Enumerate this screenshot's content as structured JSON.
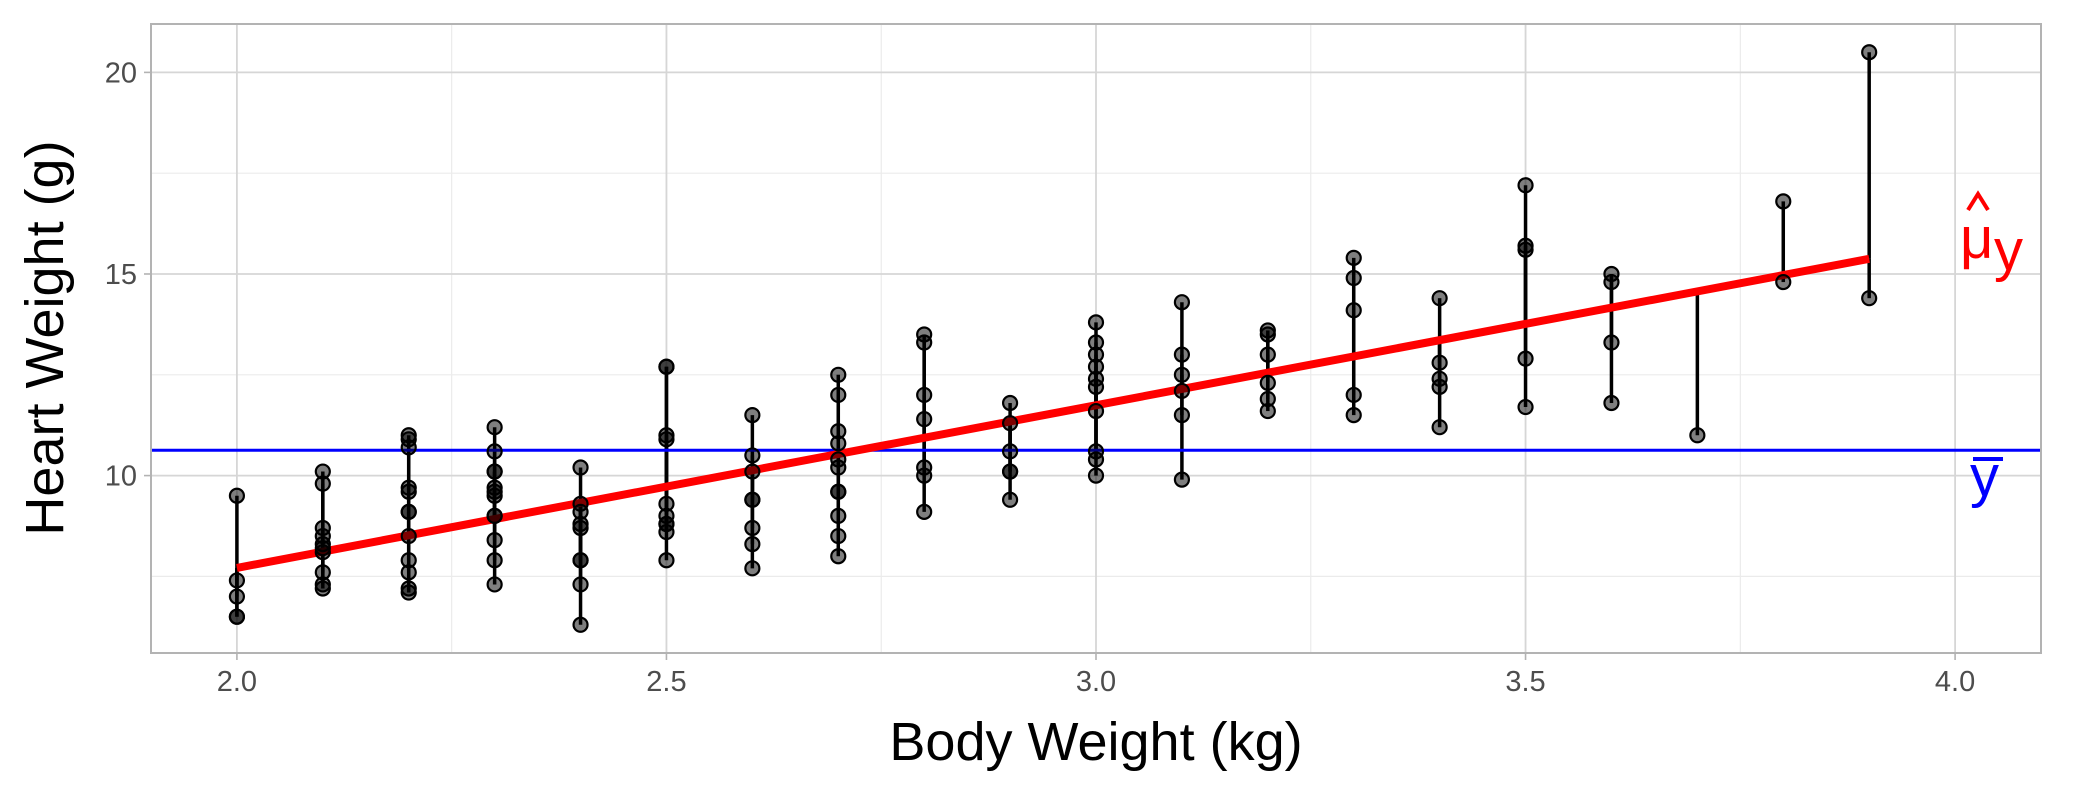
{
  "chart_data": {
    "type": "scatter",
    "title": "",
    "xlabel": "Body Weight (kg)",
    "ylabel": "Heart Weight (g)",
    "xlim": [
      1.9,
      4.1
    ],
    "ylim": [
      5.6,
      21.2
    ],
    "x_ticks": [
      2.0,
      2.5,
      3.0,
      3.5,
      4.0
    ],
    "x_tick_labels": [
      "2.0",
      "2.5",
      "3.0",
      "3.5",
      "4.0"
    ],
    "y_ticks": [
      10,
      15,
      20
    ],
    "y_tick_labels": [
      "10",
      "15",
      "20"
    ],
    "grid": true,
    "mean_line": {
      "y": 10.63,
      "label": "y",
      "label_mark": "bar",
      "color": "#0000ff"
    },
    "fit_line": {
      "intercept": -0.357,
      "slope": 4.034,
      "x_range": [
        2.0,
        3.9
      ],
      "label": "μ",
      "label_mark": "hat",
      "label_subscript": "y",
      "color": "#ff0000"
    },
    "point_color": "#000000",
    "segment_color": "#000000",
    "points": [
      {
        "x": 2.0,
        "y": 7.0
      },
      {
        "x": 2.0,
        "y": 7.4
      },
      {
        "x": 2.0,
        "y": 9.5
      },
      {
        "x": 2.0,
        "y": 6.5
      },
      {
        "x": 2.0,
        "y": 6.5
      },
      {
        "x": 2.1,
        "y": 7.2
      },
      {
        "x": 2.1,
        "y": 7.3
      },
      {
        "x": 2.1,
        "y": 7.6
      },
      {
        "x": 2.1,
        "y": 8.1
      },
      {
        "x": 2.1,
        "y": 8.2
      },
      {
        "x": 2.1,
        "y": 8.3
      },
      {
        "x": 2.1,
        "y": 8.5
      },
      {
        "x": 2.1,
        "y": 8.7
      },
      {
        "x": 2.1,
        "y": 9.8
      },
      {
        "x": 2.1,
        "y": 10.1
      },
      {
        "x": 2.2,
        "y": 7.1
      },
      {
        "x": 2.2,
        "y": 7.2
      },
      {
        "x": 2.2,
        "y": 7.6
      },
      {
        "x": 2.2,
        "y": 7.9
      },
      {
        "x": 2.2,
        "y": 8.5
      },
      {
        "x": 2.2,
        "y": 9.1
      },
      {
        "x": 2.2,
        "y": 9.1
      },
      {
        "x": 2.2,
        "y": 9.6
      },
      {
        "x": 2.2,
        "y": 9.7
      },
      {
        "x": 2.2,
        "y": 10.7
      },
      {
        "x": 2.2,
        "y": 10.9
      },
      {
        "x": 2.2,
        "y": 11.0
      },
      {
        "x": 2.3,
        "y": 7.3
      },
      {
        "x": 2.3,
        "y": 7.9
      },
      {
        "x": 2.3,
        "y": 8.4
      },
      {
        "x": 2.3,
        "y": 9.0
      },
      {
        "x": 2.3,
        "y": 9.0
      },
      {
        "x": 2.3,
        "y": 9.5
      },
      {
        "x": 2.3,
        "y": 9.6
      },
      {
        "x": 2.3,
        "y": 9.7
      },
      {
        "x": 2.3,
        "y": 10.1
      },
      {
        "x": 2.3,
        "y": 10.1
      },
      {
        "x": 2.3,
        "y": 10.6
      },
      {
        "x": 2.3,
        "y": 11.2
      },
      {
        "x": 2.4,
        "y": 6.3
      },
      {
        "x": 2.4,
        "y": 7.3
      },
      {
        "x": 2.4,
        "y": 7.9
      },
      {
        "x": 2.4,
        "y": 7.9
      },
      {
        "x": 2.4,
        "y": 8.7
      },
      {
        "x": 2.4,
        "y": 8.8
      },
      {
        "x": 2.4,
        "y": 9.1
      },
      {
        "x": 2.4,
        "y": 9.3
      },
      {
        "x": 2.4,
        "y": 10.2
      },
      {
        "x": 2.5,
        "y": 7.9
      },
      {
        "x": 2.5,
        "y": 8.6
      },
      {
        "x": 2.5,
        "y": 8.8
      },
      {
        "x": 2.5,
        "y": 8.8
      },
      {
        "x": 2.5,
        "y": 9.0
      },
      {
        "x": 2.5,
        "y": 9.3
      },
      {
        "x": 2.5,
        "y": 10.9
      },
      {
        "x": 2.5,
        "y": 11.0
      },
      {
        "x": 2.5,
        "y": 12.7
      },
      {
        "x": 2.5,
        "y": 12.7
      },
      {
        "x": 2.6,
        "y": 7.7
      },
      {
        "x": 2.6,
        "y": 8.3
      },
      {
        "x": 2.6,
        "y": 8.7
      },
      {
        "x": 2.6,
        "y": 9.4
      },
      {
        "x": 2.6,
        "y": 9.4
      },
      {
        "x": 2.6,
        "y": 10.1
      },
      {
        "x": 2.6,
        "y": 10.5
      },
      {
        "x": 2.6,
        "y": 11.5
      },
      {
        "x": 2.7,
        "y": 8.0
      },
      {
        "x": 2.7,
        "y": 8.5
      },
      {
        "x": 2.7,
        "y": 9.0
      },
      {
        "x": 2.7,
        "y": 9.6
      },
      {
        "x": 2.7,
        "y": 9.6
      },
      {
        "x": 2.7,
        "y": 10.2
      },
      {
        "x": 2.7,
        "y": 10.4
      },
      {
        "x": 2.7,
        "y": 10.8
      },
      {
        "x": 2.7,
        "y": 11.1
      },
      {
        "x": 2.7,
        "y": 12.0
      },
      {
        "x": 2.7,
        "y": 12.5
      },
      {
        "x": 2.8,
        "y": 9.1
      },
      {
        "x": 2.8,
        "y": 10.0
      },
      {
        "x": 2.8,
        "y": 10.2
      },
      {
        "x": 2.8,
        "y": 11.4
      },
      {
        "x": 2.8,
        "y": 12.0
      },
      {
        "x": 2.8,
        "y": 13.3
      },
      {
        "x": 2.8,
        "y": 13.5
      },
      {
        "x": 2.9,
        "y": 9.4
      },
      {
        "x": 2.9,
        "y": 10.1
      },
      {
        "x": 2.9,
        "y": 10.1
      },
      {
        "x": 2.9,
        "y": 10.6
      },
      {
        "x": 2.9,
        "y": 11.3
      },
      {
        "x": 2.9,
        "y": 11.8
      },
      {
        "x": 3.0,
        "y": 10.0
      },
      {
        "x": 3.0,
        "y": 10.4
      },
      {
        "x": 3.0,
        "y": 10.6
      },
      {
        "x": 3.0,
        "y": 11.6
      },
      {
        "x": 3.0,
        "y": 12.2
      },
      {
        "x": 3.0,
        "y": 12.4
      },
      {
        "x": 3.0,
        "y": 12.7
      },
      {
        "x": 3.0,
        "y": 13.0
      },
      {
        "x": 3.0,
        "y": 13.3
      },
      {
        "x": 3.0,
        "y": 13.8
      },
      {
        "x": 3.1,
        "y": 9.9
      },
      {
        "x": 3.1,
        "y": 11.5
      },
      {
        "x": 3.1,
        "y": 12.1
      },
      {
        "x": 3.1,
        "y": 12.5
      },
      {
        "x": 3.1,
        "y": 13.0
      },
      {
        "x": 3.1,
        "y": 14.3
      },
      {
        "x": 3.2,
        "y": 11.6
      },
      {
        "x": 3.2,
        "y": 11.9
      },
      {
        "x": 3.2,
        "y": 12.3
      },
      {
        "x": 3.2,
        "y": 13.0
      },
      {
        "x": 3.2,
        "y": 13.5
      },
      {
        "x": 3.2,
        "y": 13.6
      },
      {
        "x": 3.3,
        "y": 11.5
      },
      {
        "x": 3.3,
        "y": 12.0
      },
      {
        "x": 3.3,
        "y": 14.1
      },
      {
        "x": 3.3,
        "y": 14.9
      },
      {
        "x": 3.3,
        "y": 15.4
      },
      {
        "x": 3.4,
        "y": 11.2
      },
      {
        "x": 3.4,
        "y": 12.2
      },
      {
        "x": 3.4,
        "y": 12.4
      },
      {
        "x": 3.4,
        "y": 12.8
      },
      {
        "x": 3.4,
        "y": 14.4
      },
      {
        "x": 3.5,
        "y": 11.7
      },
      {
        "x": 3.5,
        "y": 12.9
      },
      {
        "x": 3.5,
        "y": 15.6
      },
      {
        "x": 3.5,
        "y": 15.7
      },
      {
        "x": 3.5,
        "y": 17.2
      },
      {
        "x": 3.6,
        "y": 11.8
      },
      {
        "x": 3.6,
        "y": 13.3
      },
      {
        "x": 3.6,
        "y": 14.8
      },
      {
        "x": 3.6,
        "y": 15.0
      },
      {
        "x": 3.7,
        "y": 11.0
      },
      {
        "x": 3.8,
        "y": 14.8
      },
      {
        "x": 3.8,
        "y": 16.8
      },
      {
        "x": 3.9,
        "y": 14.4
      },
      {
        "x": 3.9,
        "y": 20.5
      }
    ]
  }
}
